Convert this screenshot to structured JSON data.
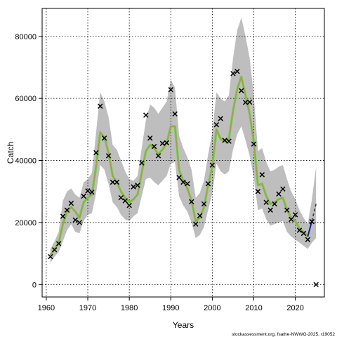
{
  "chart_data": {
    "type": "line",
    "title": "",
    "xlabel": "Years",
    "ylabel": "Catch",
    "credit": "stockassessment.org, fsathe-NWWG-2025, r19052",
    "xlim": [
      1959,
      2027
    ],
    "ylim": [
      -4000,
      89000
    ],
    "x_ticks": [
      1960,
      1970,
      1980,
      1990,
      2000,
      2010,
      2020
    ],
    "y_ticks": [
      0,
      20000,
      40000,
      60000,
      80000
    ],
    "grid": true,
    "colors": {
      "band": "#bebebe",
      "estimate_outer": "#7cc94a",
      "estimate_inner": "#a89a4e",
      "projection": "#1c1c8c",
      "projection_dash": "#3a3a3a",
      "observed": "#000000"
    },
    "series": [
      {
        "name": "",
        "kind": "observed",
        "x": [
          1961,
          1962,
          1963,
          1964,
          1965,
          1966,
          1967,
          1968,
          1969,
          1970,
          1971,
          1972,
          1973,
          1974,
          1975,
          1976,
          1977,
          1978,
          1979,
          1980,
          1981,
          1982,
          1983,
          1984,
          1985,
          1986,
          1987,
          1988,
          1989,
          1990,
          1991,
          1992,
          1993,
          1994,
          1995,
          1996,
          1997,
          1998,
          1999,
          2000,
          2001,
          2002,
          2003,
          2004,
          2005,
          2006,
          2007,
          2008,
          2009,
          2010,
          2011,
          2012,
          2013,
          2014,
          2015,
          2016,
          2017,
          2018,
          2019,
          2020,
          2021,
          2022,
          2023,
          2024,
          2025
        ],
        "values": [
          9000,
          11200,
          13200,
          22000,
          24000,
          26200,
          20800,
          20000,
          28500,
          30200,
          29800,
          42500,
          57500,
          47200,
          41500,
          33000,
          33000,
          28000,
          27000,
          25500,
          31500,
          32000,
          39200,
          54600,
          47200,
          44500,
          41500,
          45500,
          45700,
          62800,
          55000,
          34500,
          33000,
          32500,
          26700,
          19500,
          22200,
          26000,
          32500,
          38500,
          51500,
          53500,
          46500,
          46200,
          68000,
          68700,
          62500,
          58700,
          58800,
          45300,
          30000,
          35400,
          26500,
          24000,
          26000,
          29200,
          30800,
          24000,
          21000,
          22500,
          17500,
          16500,
          14500,
          20300,
          0
        ]
      },
      {
        "name": "",
        "kind": "estimate",
        "x": [
          1961,
          1962,
          1963,
          1964,
          1965,
          1966,
          1967,
          1968,
          1969,
          1970,
          1971,
          1972,
          1973,
          1974,
          1975,
          1976,
          1977,
          1978,
          1979,
          1980,
          1981,
          1982,
          1983,
          1984,
          1985,
          1986,
          1987,
          1988,
          1989,
          1990,
          1991,
          1992,
          1993,
          1994,
          1995,
          1996,
          1997,
          1998,
          1999,
          2000,
          2001,
          2002,
          2003,
          2004,
          2005,
          2006,
          2007,
          2008,
          2009,
          2010,
          2011,
          2012,
          2013,
          2014,
          2015,
          2016,
          2017,
          2018,
          2019,
          2020,
          2021,
          2022,
          2023
        ],
        "values": [
          9500,
          11500,
          13500,
          19500,
          23500,
          25000,
          23500,
          21500,
          26500,
          28000,
          29000,
          38000,
          49000,
          47500,
          42500,
          35000,
          33000,
          30000,
          28000,
          26500,
          27500,
          29000,
          36000,
          43000,
          45000,
          44000,
          42000,
          43500,
          45500,
          51000,
          51000,
          37000,
          33500,
          31000,
          27000,
          20500,
          21500,
          25000,
          32000,
          38000,
          50000,
          47000,
          46000,
          47000,
          56000,
          63000,
          67000,
          61000,
          55000,
          46000,
          32000,
          32500,
          28500,
          26000,
          26500,
          27500,
          28000,
          24000,
          21500,
          20500,
          18000,
          17000,
          15500
        ]
      },
      {
        "name": "",
        "kind": "band_upper",
        "x": [
          1961,
          1962,
          1963,
          1964,
          1965,
          1966,
          1967,
          1968,
          1969,
          1970,
          1971,
          1972,
          1973,
          1974,
          1975,
          1976,
          1977,
          1978,
          1979,
          1980,
          1981,
          1982,
          1983,
          1984,
          1985,
          1986,
          1987,
          1988,
          1989,
          1990,
          1991,
          1992,
          1993,
          1994,
          1995,
          1996,
          1997,
          1998,
          1999,
          2000,
          2001,
          2002,
          2003,
          2004,
          2005,
          2006,
          2007,
          2008,
          2009,
          2010,
          2011,
          2012,
          2013,
          2014,
          2015,
          2016,
          2017,
          2018,
          2019,
          2020,
          2021,
          2022,
          2023,
          2024,
          2025
        ],
        "values": [
          11500,
          14000,
          17000,
          27000,
          30000,
          31000,
          29000,
          28000,
          33000,
          34000,
          36000,
          49000,
          62000,
          59000,
          54000,
          45000,
          43500,
          40000,
          36500,
          34000,
          33500,
          35000,
          44000,
          53000,
          58000,
          57000,
          55000,
          57000,
          59000,
          66000,
          63500,
          48000,
          44000,
          41000,
          37000,
          28000,
          29500,
          33500,
          42000,
          49000,
          62000,
          60000,
          59000,
          61000,
          73000,
          82000,
          86000,
          80000,
          73000,
          61000,
          43000,
          44000,
          39500,
          36500,
          37000,
          38000,
          38500,
          34000,
          30000,
          27500,
          24000,
          21500,
          19500,
          27500,
          38000
        ]
      },
      {
        "name": "",
        "kind": "band_lower",
        "x": [
          1961,
          1962,
          1963,
          1964,
          1965,
          1966,
          1967,
          1968,
          1969,
          1970,
          1971,
          1972,
          1973,
          1974,
          1975,
          1976,
          1977,
          1978,
          1979,
          1980,
          1981,
          1982,
          1983,
          1984,
          1985,
          1986,
          1987,
          1988,
          1989,
          1990,
          1991,
          1992,
          1993,
          1994,
          1995,
          1996,
          1997,
          1998,
          1999,
          2000,
          2001,
          2002,
          2003,
          2004,
          2005,
          2006,
          2007,
          2008,
          2009,
          2010,
          2011,
          2012,
          2013,
          2014,
          2015,
          2016,
          2017,
          2018,
          2019,
          2020,
          2021,
          2022,
          2023,
          2024,
          2025
        ],
        "values": [
          7000,
          9000,
          10500,
          14000,
          17500,
          19500,
          17000,
          16500,
          20500,
          22500,
          23000,
          29500,
          38500,
          37000,
          32500,
          26500,
          25000,
          22500,
          21000,
          20500,
          22000,
          23000,
          28500,
          34000,
          34500,
          33000,
          32000,
          33500,
          35000,
          39000,
          39500,
          28500,
          25500,
          23500,
          20000,
          15000,
          16000,
          18500,
          24000,
          29500,
          39000,
          36500,
          35500,
          36500,
          43500,
          48500,
          51000,
          46500,
          41500,
          34500,
          24000,
          24500,
          21000,
          19000,
          19500,
          20000,
          20500,
          17000,
          15500,
          14500,
          13500,
          12500,
          11500,
          13500,
          15000
        ]
      },
      {
        "name": "",
        "kind": "projection",
        "x": [
          2023,
          2024
        ],
        "values": [
          15500,
          20500
        ]
      },
      {
        "name": "",
        "kind": "projection_dashed",
        "x": [
          2024,
          2025
        ],
        "values": [
          20500,
          26000
        ]
      }
    ]
  }
}
